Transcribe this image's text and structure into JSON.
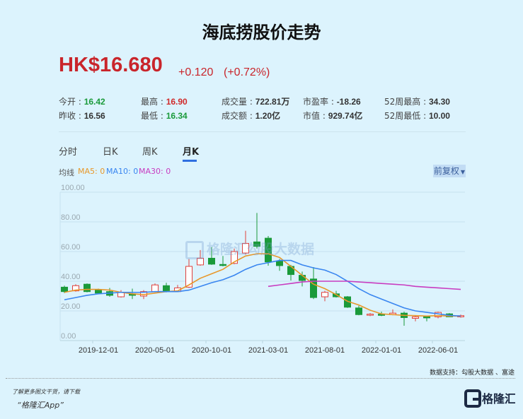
{
  "header": {
    "title": "海底捞股价走势",
    "price": "HK$16.680",
    "change": "+0.120",
    "change_pct": "(+0.72%)"
  },
  "stats": [
    {
      "label": "今开 : ",
      "value": "16.42",
      "tone": "dn"
    },
    {
      "label": "最高 : ",
      "value": "16.90",
      "tone": "up"
    },
    {
      "label": "成交量 : ",
      "value": "722.81万",
      "tone": ""
    },
    {
      "label": "市盈率 : ",
      "value": "-18.26",
      "tone": ""
    },
    {
      "label": "52周最高 : ",
      "value": "34.30",
      "tone": ""
    },
    {
      "label": "昨收 : ",
      "value": "16.56",
      "tone": ""
    },
    {
      "label": "最低 : ",
      "value": "16.34",
      "tone": "dn"
    },
    {
      "label": "成交额 : ",
      "value": "1.20亿",
      "tone": ""
    },
    {
      "label": "市值 : ",
      "value": "929.74亿",
      "tone": ""
    },
    {
      "label": "52周最低 : ",
      "value": "10.00",
      "tone": ""
    }
  ],
  "tabs": [
    {
      "label": "分时"
    },
    {
      "label": "日K"
    },
    {
      "label": "周K"
    },
    {
      "label": "月K",
      "active": true
    }
  ],
  "ma_legend": {
    "label": "均线",
    "ma5": "MA5: 0",
    "ma10": "MA10: 0",
    "ma30": "MA30: 0"
  },
  "adjust_dropdown": {
    "label": "前复权",
    "icon": "caret-down-icon"
  },
  "watermark": "格隆汇勾股大数据",
  "footer": {
    "support": "数据支持：勾股大数据 、富途",
    "promo_line1": "了解更多图文干货，请下载",
    "promo_line2": "“格隆汇App”",
    "logo": "格隆汇"
  },
  "colors": {
    "up": "#e0403c",
    "down": "#1a9a3a",
    "ma5": "#e8982a",
    "ma10": "#3a86f0",
    "ma30": "#c83cc0",
    "background": "#dcf3fd"
  },
  "chart_data": {
    "type": "candlestick",
    "ylim": [
      0,
      100
    ],
    "yticks": [
      "0.00",
      "20.00",
      "40.00",
      "60.00",
      "80.00",
      "100.00"
    ],
    "xtick_labels": [
      "2019-12-01",
      "2020-05-01",
      "2020-10-01",
      "2021-03-01",
      "2021-08-01",
      "2022-01-01",
      "2022-06-01"
    ],
    "grid": true,
    "months": [
      "2019-09",
      "2019-10",
      "2019-11",
      "2019-12",
      "2020-01",
      "2020-02",
      "2020-03",
      "2020-04",
      "2020-05",
      "2020-06",
      "2020-07",
      "2020-08",
      "2020-09",
      "2020-10",
      "2020-11",
      "2020-12",
      "2021-01",
      "2021-02",
      "2021-03",
      "2021-04",
      "2021-05",
      "2021-06",
      "2021-07",
      "2021-08",
      "2021-09",
      "2021-10",
      "2021-11",
      "2021-12",
      "2022-01",
      "2022-02",
      "2022-03",
      "2022-04",
      "2022-05",
      "2022-06",
      "2022-07",
      "2022-08"
    ],
    "ohlc": [
      [
        36,
        37,
        32,
        33
      ],
      [
        33.5,
        38,
        33,
        37
      ],
      [
        38,
        38.5,
        32.5,
        33
      ],
      [
        34,
        35,
        31.5,
        32
      ],
      [
        33,
        35.5,
        29.5,
        30.5
      ],
      [
        29.5,
        34,
        29,
        32.5
      ],
      [
        31.5,
        35,
        28,
        30.5
      ],
      [
        30,
        34,
        28,
        33
      ],
      [
        33,
        38.5,
        32.5,
        37.5
      ],
      [
        37,
        39,
        32.5,
        33.5
      ],
      [
        33,
        37.5,
        33,
        35.5
      ],
      [
        36,
        55,
        35.5,
        50
      ],
      [
        51,
        61,
        50.5,
        55.5
      ],
      [
        55.5,
        63,
        51,
        51.5
      ],
      [
        51.3,
        57,
        50,
        50.8
      ],
      [
        52,
        62,
        51.5,
        60
      ],
      [
        59,
        74,
        58,
        65.5
      ],
      [
        66.5,
        86,
        62,
        63.5
      ],
      [
        69,
        70.5,
        50.5,
        53
      ],
      [
        53.5,
        55,
        47,
        50.5
      ],
      [
        50,
        51,
        40.5,
        44.5
      ],
      [
        44,
        46.5,
        36.5,
        40.5
      ],
      [
        41.5,
        49.5,
        28,
        29
      ],
      [
        29.5,
        33.5,
        26.5,
        32.5
      ],
      [
        31.5,
        33.5,
        29,
        29.5
      ],
      [
        29.5,
        30,
        22,
        22.5
      ],
      [
        22,
        23.5,
        17,
        17.5
      ],
      [
        17.3,
        18.5,
        16.5,
        17.8
      ],
      [
        17.8,
        19.5,
        16.5,
        17
      ],
      [
        17.5,
        21,
        17,
        18.5
      ],
      [
        18.5,
        19.5,
        10,
        15.5
      ],
      [
        15,
        17,
        13,
        16
      ],
      [
        16,
        16.5,
        13,
        15.5
      ],
      [
        16,
        19.5,
        15,
        19
      ],
      [
        18,
        18.5,
        16,
        16
      ],
      [
        16,
        17.5,
        15.5,
        16.8
      ]
    ],
    "ohlc_order": [
      "open",
      "high",
      "low",
      "close"
    ],
    "series": [
      {
        "name": "MA5",
        "values": [
          32.5,
          34,
          34.5,
          34.5,
          34,
          32.5,
          31.5,
          31,
          32,
          33,
          33.5,
          37.5,
          42,
          45,
          48,
          53,
          57,
          58.5,
          58.5,
          56,
          50,
          44,
          38,
          35,
          31,
          26.5,
          24,
          20.5,
          18,
          17.5,
          17,
          16.8,
          16.5,
          16.8,
          16.5,
          16.5
        ]
      },
      {
        "name": "MA10",
        "values": [
          27.5,
          29,
          30.5,
          31.5,
          32,
          32.5,
          32.5,
          32.5,
          33,
          33,
          33,
          34,
          36.5,
          39,
          41,
          44,
          48,
          51,
          52.5,
          54,
          54,
          51,
          49,
          47.5,
          44.5,
          40,
          35,
          31,
          28,
          25,
          22,
          20,
          19,
          18,
          17,
          16.5
        ]
      },
      {
        "name": "MA30",
        "values": [
          null,
          null,
          null,
          null,
          null,
          null,
          null,
          null,
          null,
          null,
          null,
          null,
          null,
          null,
          null,
          null,
          null,
          null,
          36.5,
          37.5,
          38.5,
          39.5,
          40,
          40,
          40,
          40,
          39.5,
          39,
          38.5,
          38,
          37.5,
          36.5,
          36,
          35.5,
          35,
          34.5
        ]
      }
    ]
  }
}
